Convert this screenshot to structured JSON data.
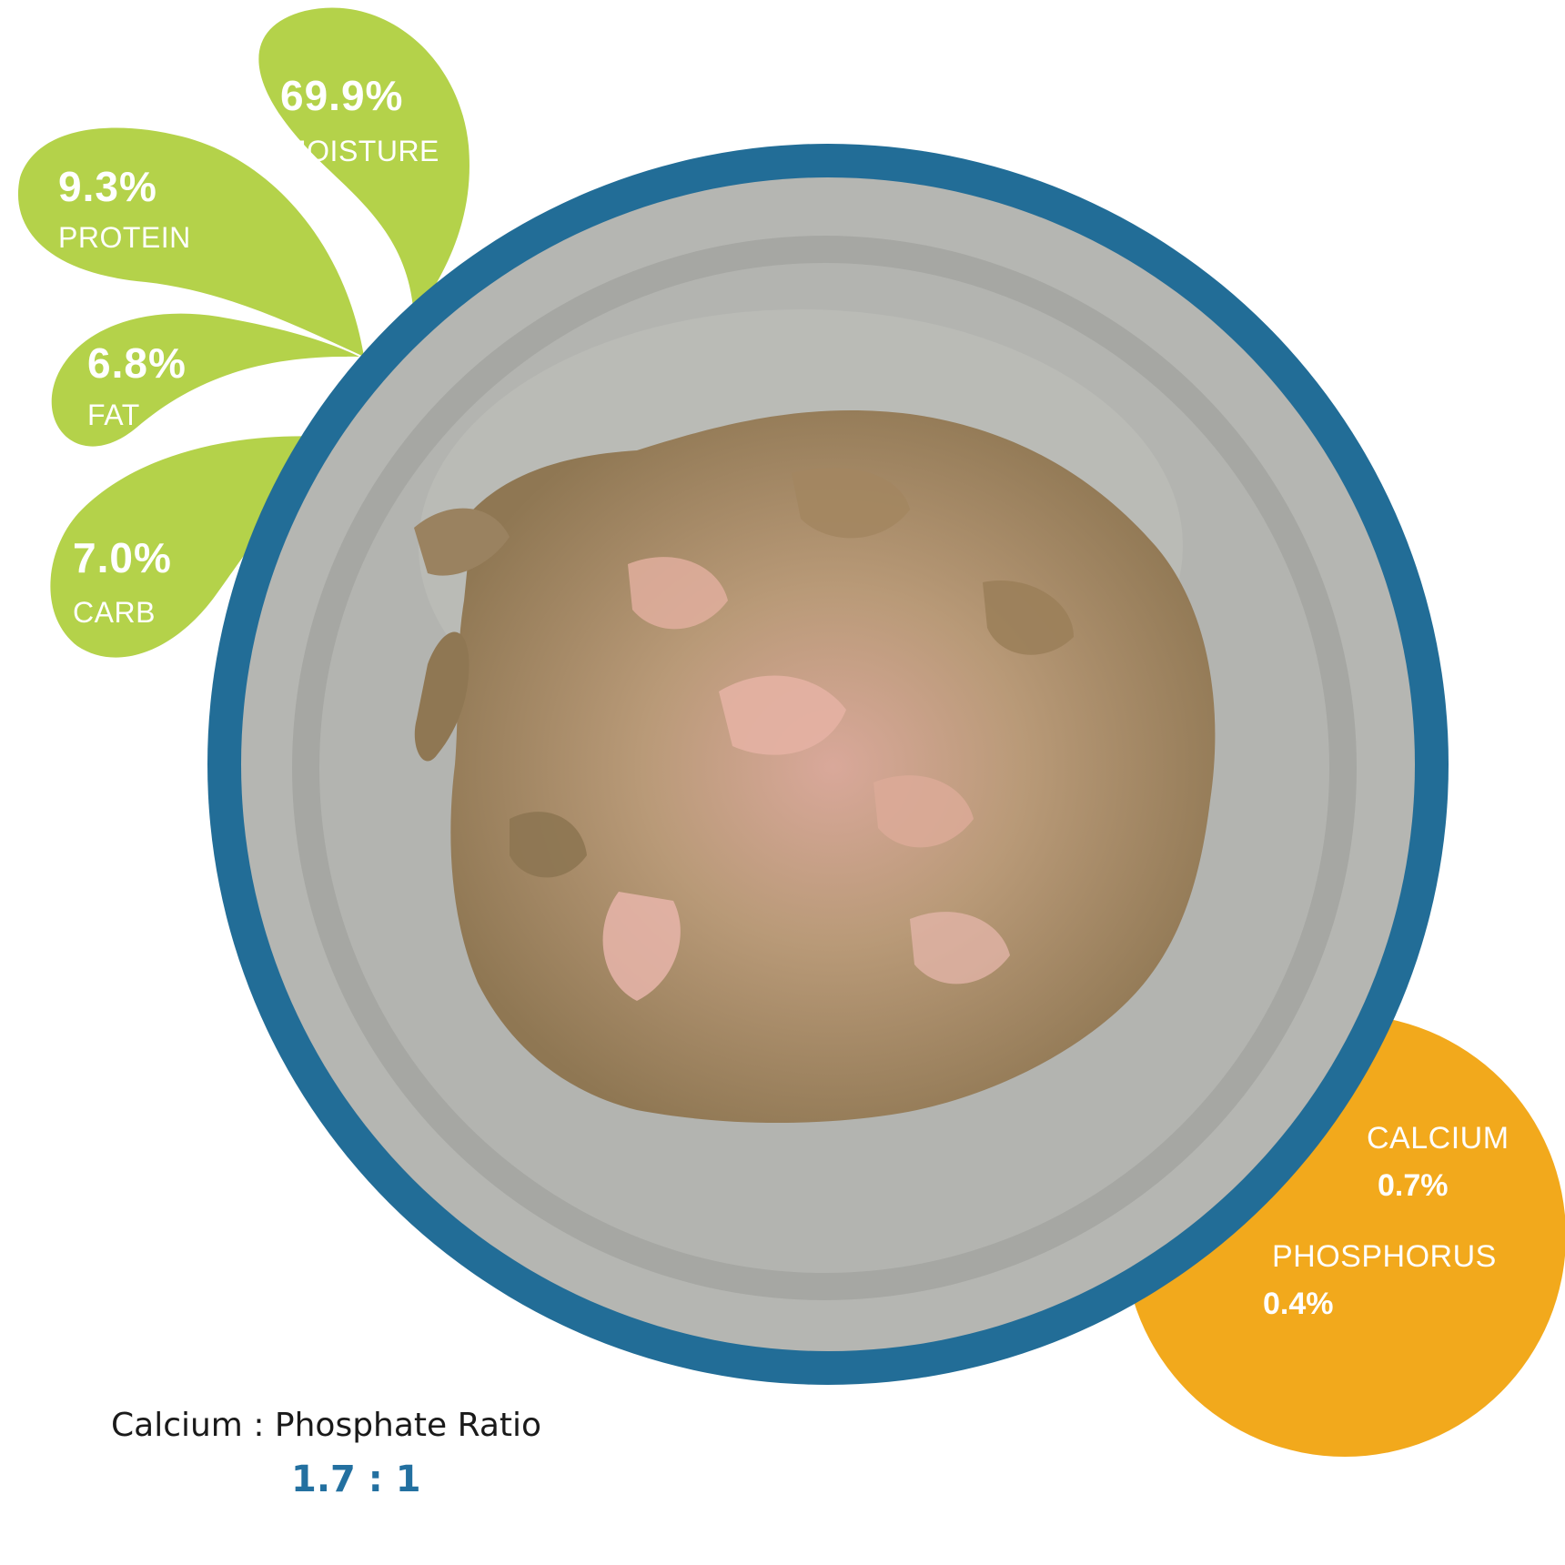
{
  "colors": {
    "petal_green": "#b4d24a",
    "ring_blue": "#226d97",
    "bowl_gray": "#b5b6b2",
    "mineral_orange": "#f2a91c",
    "ratio_blue": "#2370a0"
  },
  "macros": {
    "moisture": {
      "value": "69.9%",
      "label": "MOISTURE"
    },
    "protein": {
      "value": "9.3%",
      "label": "PROTEIN"
    },
    "fat": {
      "value": "6.8%",
      "label": "FAT"
    },
    "carb": {
      "value": "7.0%",
      "label": "CARB"
    }
  },
  "minerals": {
    "calcium": {
      "label": "CALCIUM",
      "value": "0.7%"
    },
    "phosphorus": {
      "label": "PHOSPHORUS",
      "value": "0.4%"
    }
  },
  "ratio": {
    "caption": "Calcium : Phosphate Ratio",
    "value": "1.7 : 1"
  }
}
